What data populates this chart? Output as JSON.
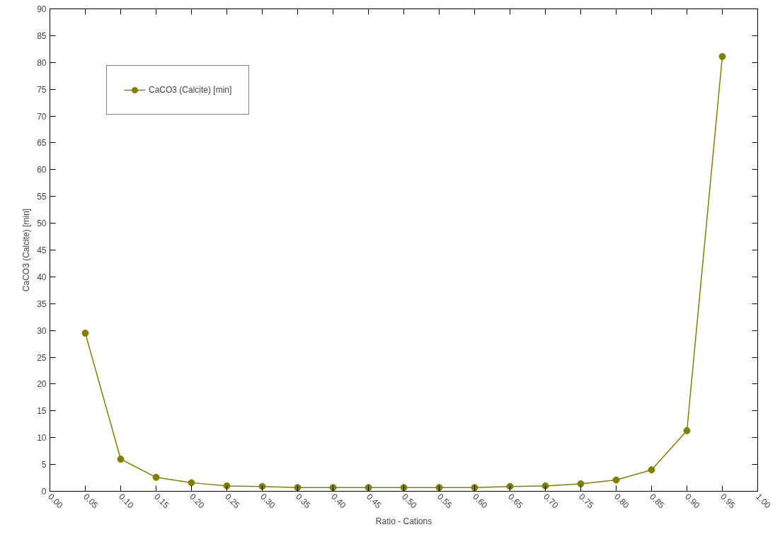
{
  "chart_data": {
    "type": "line",
    "xlabel": "Ratio - Cations",
    "ylabel": "CaCO3 (Calcite) [min]",
    "x": [
      0.05,
      0.1,
      0.15,
      0.2,
      0.25,
      0.3,
      0.35,
      0.4,
      0.45,
      0.5,
      0.55,
      0.6,
      0.65,
      0.7,
      0.75,
      0.8,
      0.85,
      0.9,
      0.95
    ],
    "series": [
      {
        "name": "CaCO3 (Calcite) [min]",
        "color": "#808000",
        "values": [
          29.5,
          6.0,
          2.6,
          1.6,
          1.0,
          0.9,
          0.7,
          0.7,
          0.7,
          0.7,
          0.7,
          0.7,
          0.9,
          1.0,
          1.4,
          2.1,
          4.0,
          11.3,
          81.1
        ]
      }
    ],
    "xlim": [
      0,
      1
    ],
    "ylim": [
      0,
      90
    ],
    "xticks": [
      {
        "value": 0,
        "label": "0.00"
      },
      {
        "value": 0.05,
        "label": "0.05"
      },
      {
        "value": 0.1,
        "label": "0.10"
      },
      {
        "value": 0.15,
        "label": "0.15"
      },
      {
        "value": 0.2,
        "label": "0.20"
      },
      {
        "value": 0.25,
        "label": "0.25"
      },
      {
        "value": 0.3,
        "label": "0.30"
      },
      {
        "value": 0.35,
        "label": "0.35"
      },
      {
        "value": 0.4,
        "label": "0.40"
      },
      {
        "value": 0.45,
        "label": "0.45"
      },
      {
        "value": 0.5,
        "label": "0.50"
      },
      {
        "value": 0.55,
        "label": "0.55"
      },
      {
        "value": 0.6,
        "label": "0.60"
      },
      {
        "value": 0.65,
        "label": "0.65"
      },
      {
        "value": 0.7,
        "label": "0.70"
      },
      {
        "value": 0.75,
        "label": "0.75"
      },
      {
        "value": 0.8,
        "label": "0.80"
      },
      {
        "value": 0.85,
        "label": "0.85"
      },
      {
        "value": 0.9,
        "label": "0.90"
      },
      {
        "value": 0.95,
        "label": "0.95"
      },
      {
        "value": 1,
        "label": "1.00"
      }
    ],
    "yticks": [
      0,
      5,
      10,
      15,
      20,
      25,
      30,
      35,
      40,
      45,
      50,
      55,
      60,
      65,
      70,
      75,
      80,
      85,
      90
    ],
    "grid": false,
    "legend": "top left",
    "marker": "circle",
    "line_style": "solid"
  }
}
